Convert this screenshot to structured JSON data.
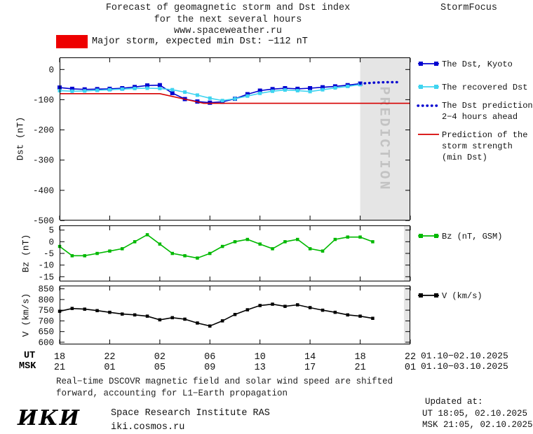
{
  "header": {
    "title_line1": "Forecast of geomagnetic storm and Dst index",
    "title_line2": "for the next several hours",
    "title_line3": "www.spaceweather.ru",
    "brand": "StormFocus"
  },
  "alert": {
    "text": "Major storm, expected min Dst: −112 nT",
    "box_color": "#ee0000"
  },
  "legend": {
    "dst_kyoto": {
      "label": "The Dst, Kyoto",
      "color": "#0000d0"
    },
    "recovered": {
      "label": "The recovered Dst",
      "color": "#3fd4f0"
    },
    "prediction": {
      "label_line1": "The Dst prediction",
      "label_line2": "2−4 hours ahead",
      "color": "#0000d0"
    },
    "strength": {
      "label_line1": "Prediction of the",
      "label_line2": "storm strength",
      "label_line3": "(min Dst)",
      "color": "#d60000"
    },
    "bz": {
      "label": "Bz (nT, GSM)",
      "color": "#00b800"
    },
    "v": {
      "label": "V (km/s)",
      "color": "#000000"
    }
  },
  "axes": {
    "dst_ylabel": "Dst (nT)",
    "bz_ylabel": "Bz (nT)",
    "v_ylabel": "V (km/s)",
    "ut_label": "UT",
    "msk_label": "MSK",
    "ut_ticks": [
      "18",
      "22",
      "02",
      "06",
      "10",
      "14",
      "18",
      "22"
    ],
    "msk_ticks": [
      "21",
      "01",
      "05",
      "09",
      "13",
      "17",
      "21",
      "01"
    ],
    "ut_date_range": "01.10−02.10.2025",
    "msk_date_range": "01.10−03.10.2025"
  },
  "prediction_zone": {
    "label": "PREDICTION",
    "fill": "#e5e5e5",
    "text_color": "#c3c3c3"
  },
  "footer": {
    "note_line1": "Real−time DSCOVR magnetic field and solar wind speed are shifted",
    "note_line2": "forward, accounting for L1−Earth propagation",
    "updated_label": "Updated at:",
    "updated_ut": "UT  18:05, 02.10.2025",
    "updated_msk": "MSK 21:05, 02.10.2025",
    "logo_text": "ИКИ",
    "institute": "Space Research Institute RAS",
    "website": "iki.cosmos.ru"
  },
  "chart_data": [
    {
      "type": "line",
      "title": "Dst index: measured, recovered and predicted",
      "ylabel": "Dst (nT)",
      "x_unit": "hours since 18:00 UT 01.10.2025",
      "xlim": [
        0,
        28
      ],
      "ylim": [
        -500,
        40
      ],
      "yticks": [
        0,
        -100,
        -200,
        -300,
        -400,
        -500
      ],
      "xtick_hours": [
        0,
        4,
        8,
        12,
        16,
        20,
        24,
        28
      ],
      "prediction_zone_hours": [
        24,
        28
      ],
      "legend_position": "right",
      "grid": false,
      "series": [
        {
          "name": "The Dst, Kyoto",
          "color": "#0000d0",
          "marker": "square",
          "marker_size": 6,
          "line": "solid",
          "x": [
            0,
            1,
            2,
            3,
            4,
            5,
            6,
            7,
            8,
            9,
            10,
            11,
            12,
            13,
            14,
            15,
            16,
            17,
            18,
            19,
            20,
            21,
            22,
            23,
            24
          ],
          "y": [
            -60,
            -64,
            -66,
            -65,
            -64,
            -62,
            -58,
            -53,
            -52,
            -78,
            -98,
            -106,
            -110,
            -107,
            -97,
            -82,
            -70,
            -65,
            -62,
            -64,
            -62,
            -59,
            -56,
            -52,
            -47
          ]
        },
        {
          "name": "The recovered Dst",
          "color": "#3fd4f0",
          "marker": "square",
          "marker_size": 5,
          "line": "solid",
          "x": [
            0,
            1,
            2,
            3,
            4,
            5,
            6,
            7,
            8,
            9,
            10,
            11,
            12,
            13,
            14,
            15,
            16,
            17,
            18,
            19,
            20,
            21,
            22,
            23,
            24
          ],
          "y": [
            -70,
            -72,
            -71,
            -69,
            -67,
            -65,
            -63,
            -62,
            -63,
            -67,
            -75,
            -85,
            -95,
            -103,
            -97,
            -88,
            -79,
            -72,
            -68,
            -70,
            -73,
            -67,
            -61,
            -56,
            -50
          ]
        },
        {
          "name": "The Dst prediction 2−4 hours ahead",
          "color": "#0000d0",
          "marker": "none",
          "line": "dotted",
          "x": [
            24,
            25,
            26,
            27
          ],
          "y": [
            -47,
            -44,
            -42,
            -42
          ]
        },
        {
          "name": "Prediction of the storm strength (min Dst)",
          "color": "#d60000",
          "marker": "none",
          "line": "solid",
          "x": [
            0,
            8,
            11.5,
            28
          ],
          "y": [
            -80,
            -80,
            -112,
            -112
          ]
        }
      ]
    },
    {
      "type": "line",
      "title": "Bz GSM component of interplanetary magnetic field",
      "ylabel": "Bz (nT)",
      "x_unit": "hours since 18:00 UT 01.10.2025",
      "xlim": [
        0,
        28
      ],
      "ylim": [
        -17,
        7
      ],
      "yticks": [
        5,
        0,
        -5,
        -10,
        -15
      ],
      "xtick_hours": [
        0,
        4,
        8,
        12,
        16,
        20,
        24,
        28
      ],
      "prediction_zone_hours": [
        27.5,
        28
      ],
      "grid": false,
      "series": [
        {
          "name": "Bz (nT, GSM)",
          "color": "#00b800",
          "marker": "square",
          "marker_size": 4.5,
          "line": "solid",
          "x": [
            0,
            1,
            2,
            3,
            4,
            5,
            6,
            7,
            8,
            9,
            10,
            11,
            12,
            13,
            14,
            15,
            16,
            17,
            18,
            19,
            20,
            21,
            22,
            23,
            24,
            25
          ],
          "y": [
            -2,
            -6,
            -6,
            -5,
            -4,
            -3,
            0,
            3,
            -1,
            -5,
            -6,
            -7,
            -5,
            -2,
            0,
            1,
            -1,
            -3,
            0,
            1,
            -3,
            -4,
            1,
            2,
            2,
            0
          ]
        }
      ]
    },
    {
      "type": "line",
      "title": "Solar wind speed",
      "ylabel": "V (km/s)",
      "x_unit": "hours since 18:00 UT 01.10.2025",
      "xlim": [
        0,
        28
      ],
      "ylim": [
        590,
        865
      ],
      "yticks": [
        850,
        800,
        750,
        700,
        650,
        600
      ],
      "xtick_hours": [
        0,
        4,
        8,
        12,
        16,
        20,
        24,
        28
      ],
      "prediction_zone_hours": [
        27.5,
        28
      ],
      "grid": false,
      "series": [
        {
          "name": "V (km/s)",
          "color": "#000000",
          "marker": "square",
          "marker_size": 4.5,
          "line": "solid",
          "x": [
            0,
            1,
            2,
            3,
            4,
            5,
            6,
            7,
            8,
            9,
            10,
            11,
            12,
            13,
            14,
            15,
            16,
            17,
            18,
            19,
            20,
            21,
            22,
            23,
            24,
            25
          ],
          "y": [
            745,
            758,
            755,
            748,
            740,
            732,
            728,
            722,
            705,
            715,
            708,
            690,
            676,
            700,
            730,
            752,
            772,
            778,
            768,
            775,
            762,
            750,
            740,
            728,
            722,
            712
          ]
        }
      ]
    }
  ]
}
